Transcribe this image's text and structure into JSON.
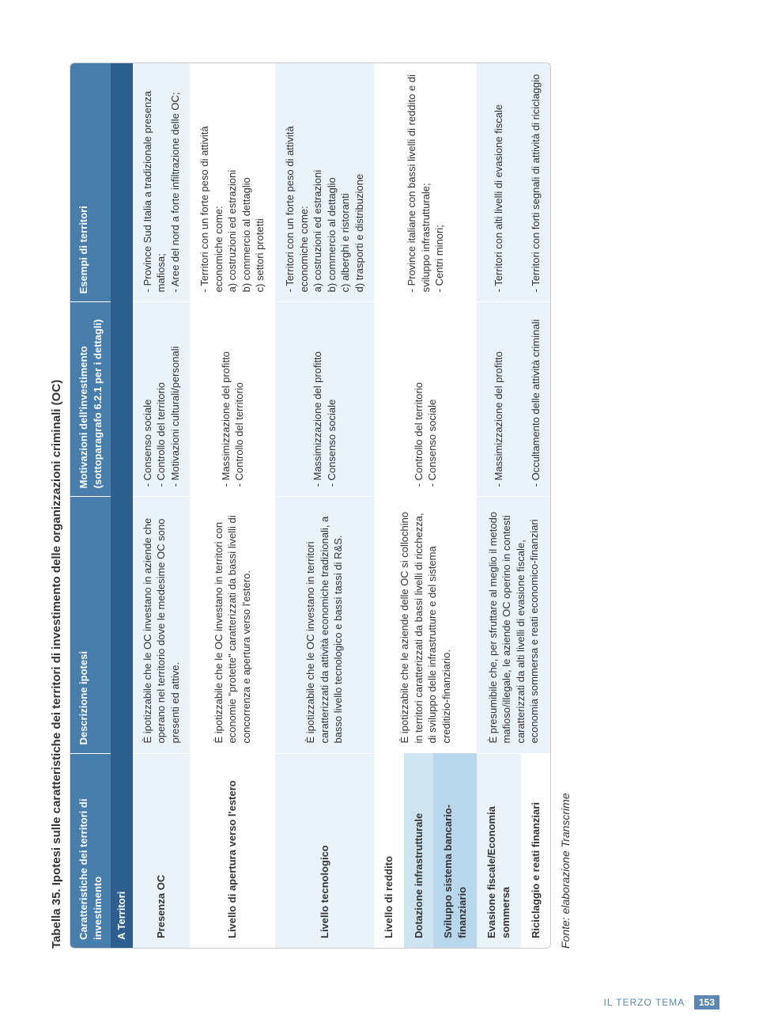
{
  "caption": "Tabella 35. Ipotesi sulle caratteristiche dei territori di investimento delle organizzazioni criminali (OC)",
  "section_header": "A Territori",
  "columns": {
    "c1": "Caratteristiche dei territori di investimento",
    "c2": "Descrizione ipotesi",
    "c3": "Motivazioni dell'investimento (sottoparagrafo 6.2.1 per i dettagli)",
    "c4": "Esempi di territori"
  },
  "rows": [
    {
      "cat_class": "cat-light",
      "band_class": "band-light",
      "c1": "Presenza OC",
      "c2": "È ipotizzabile che le OC investano in aziende che operano nel territorio dove le medesime OC sono presenti ed attive.",
      "c3": "- Consenso sociale\n- Controllo del territorio\n- Motivazioni culturali/personali",
      "c4": "- Province Sud Italia a tradizionale presenza mafiosa;\n- Aree del nord a forte infiltrazione delle OC;"
    },
    {
      "cat_class": "cat-light",
      "band_class": "band-plain",
      "c1": "Livello di apertura verso l'estero",
      "c2": "È ipotizzabile che le OC investano in territori con economie \"protette\" caratterizzati da bassi livelli di concorrenza e apertura verso l'estero.",
      "c3": "- Massimizzazione del profitto\n- Controllo del territorio",
      "c4": "- Territori con un forte peso di attività economiche come:\na) costruzioni ed estrazioni\nb) commercio al dettaglio\nc) settori protetti"
    },
    {
      "cat_class": "cat-light",
      "band_class": "band-light",
      "c1": "Livello tecnologico",
      "c2": "È ipotizzabile che le OC investano in territori caratterizzati da attività economiche tradizionali, a basso livello tecnologico e bassi tassi di R&S.",
      "c3": "- Massimizzazione del profitto\n- Consenso sociale",
      "c4": "- Territori con un forte peso di attività economiche come:\na) costruzioni ed estrazioni\nb) commercio al dettaglio\nc) alberghi e ristoranti\nd) trasporti e distribuzione"
    }
  ],
  "group2": {
    "c1_r1": "Livello di reddito",
    "c1_r2": "Dotazione infrastrutturale",
    "c1_r3": "Sviluppo sistema bancario-finanziario",
    "c2": "È ipotizzabile che le aziende delle OC si collochino in territori caratterizzati da bassi livelli di ricchezza, di sviluppo delle infrastrutture e del sistema creditizio-finanziario.",
    "c3": "- Controllo del territorio\n- Consenso sociale",
    "c4": "- Province italiane con bassi livelli di reddito e di sviluppo infrastrutturale;\n- Centri minori;"
  },
  "group3": {
    "c1_r1": "Evasione fiscale/Economia sommersa",
    "c1_r2": "Riciclaggio e reati finanziari",
    "c2": "È presumibile che, per sfruttare al meglio il metodo mafioso/illegale, le aziende OC operino in contesti caratterizzati da alti livelli di evasione fiscale, economia sommersa e reati economico-finanziari",
    "c3_r1": "- Massimizzazione del profitto",
    "c3_r2": "- Occultamento delle attività criminali",
    "c4_r1": "- Territori con alti livelli di evasione fiscale",
    "c4_r2": "- Territori con forti segnali di attività di riciclaggio"
  },
  "source": "Fonte: elaborazione Transcrime",
  "footer_label": "IL TERZO TEMA",
  "footer_page": "153",
  "colors": {
    "section_bg": "#2d5f8e",
    "header_bg": "#487eab",
    "band_light": "#e9f3f9",
    "cat_mid": "#cfe4f1",
    "cat_dark": "#b9d7ea",
    "footer": "#5b88b0"
  }
}
